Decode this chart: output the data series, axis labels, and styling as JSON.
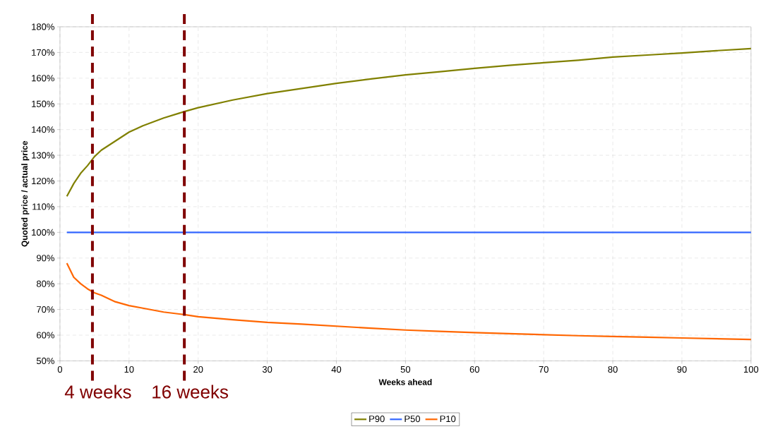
{
  "chart_data": {
    "type": "line",
    "xlabel": "Weeks ahead",
    "ylabel": "Quoted price / actual price",
    "x": [
      1,
      2,
      3,
      4,
      5,
      6,
      8,
      10,
      12,
      15,
      18,
      20,
      25,
      30,
      35,
      40,
      45,
      50,
      55,
      60,
      65,
      70,
      75,
      80,
      85,
      90,
      95,
      100
    ],
    "series": [
      {
        "name": "P90",
        "color": "#808000",
        "values": [
          114,
          119,
          123,
          126,
          129.5,
          132,
          135.5,
          139,
          141.5,
          144.5,
          147,
          148.5,
          151.5,
          154,
          156,
          158,
          159.7,
          161.3,
          162.5,
          163.8,
          165,
          166,
          167,
          168.2,
          169,
          169.8,
          170.7,
          171.5
        ]
      },
      {
        "name": "P50",
        "color": "#3366ff",
        "values": [
          100,
          100,
          100,
          100,
          100,
          100,
          100,
          100,
          100,
          100,
          100,
          100,
          100,
          100,
          100,
          100,
          100,
          100,
          100,
          100,
          100,
          100,
          100,
          100,
          100,
          100,
          100,
          100
        ]
      },
      {
        "name": "P10",
        "color": "#ff6600",
        "values": [
          88,
          82.5,
          80,
          78,
          76.5,
          75.5,
          73,
          71.5,
          70.5,
          69,
          68,
          67.2,
          66,
          65,
          64.3,
          63.5,
          62.7,
          62,
          61.5,
          61,
          60.6,
          60.2,
          59.8,
          59.5,
          59.2,
          58.9,
          58.6,
          58.3
        ]
      }
    ],
    "xlim": [
      0,
      100
    ],
    "xticks": [
      0,
      10,
      20,
      30,
      40,
      50,
      60,
      70,
      80,
      90,
      100
    ],
    "ylim": [
      50,
      180
    ],
    "yticks": [
      {
        "value": 50,
        "label": "50%"
      },
      {
        "value": 60,
        "label": "60%"
      },
      {
        "value": 70,
        "label": "70%"
      },
      {
        "value": 80,
        "label": "80%"
      },
      {
        "value": 90,
        "label": "90%"
      },
      {
        "value": 100,
        "label": "100%"
      },
      {
        "value": 110,
        "label": "110%"
      },
      {
        "value": 120,
        "label": "120%"
      },
      {
        "value": 130,
        "label": "130%"
      },
      {
        "value": 140,
        "label": "140%"
      },
      {
        "value": 150,
        "label": "150%"
      },
      {
        "value": 160,
        "label": "160%"
      },
      {
        "value": 170,
        "label": "170%"
      },
      {
        "value": 180,
        "label": "180%"
      }
    ],
    "ref_lines": [
      {
        "axis": "x",
        "value": 4.7,
        "label": "4 weeks",
        "color": "#800000",
        "line_style": "dashed"
      },
      {
        "axis": "x",
        "value": 18,
        "label": "16 weeks",
        "color": "#800000",
        "line_style": "dashed"
      }
    ],
    "grid": true,
    "legend": "bottom",
    "line_style": "solid",
    "marker": "none"
  }
}
